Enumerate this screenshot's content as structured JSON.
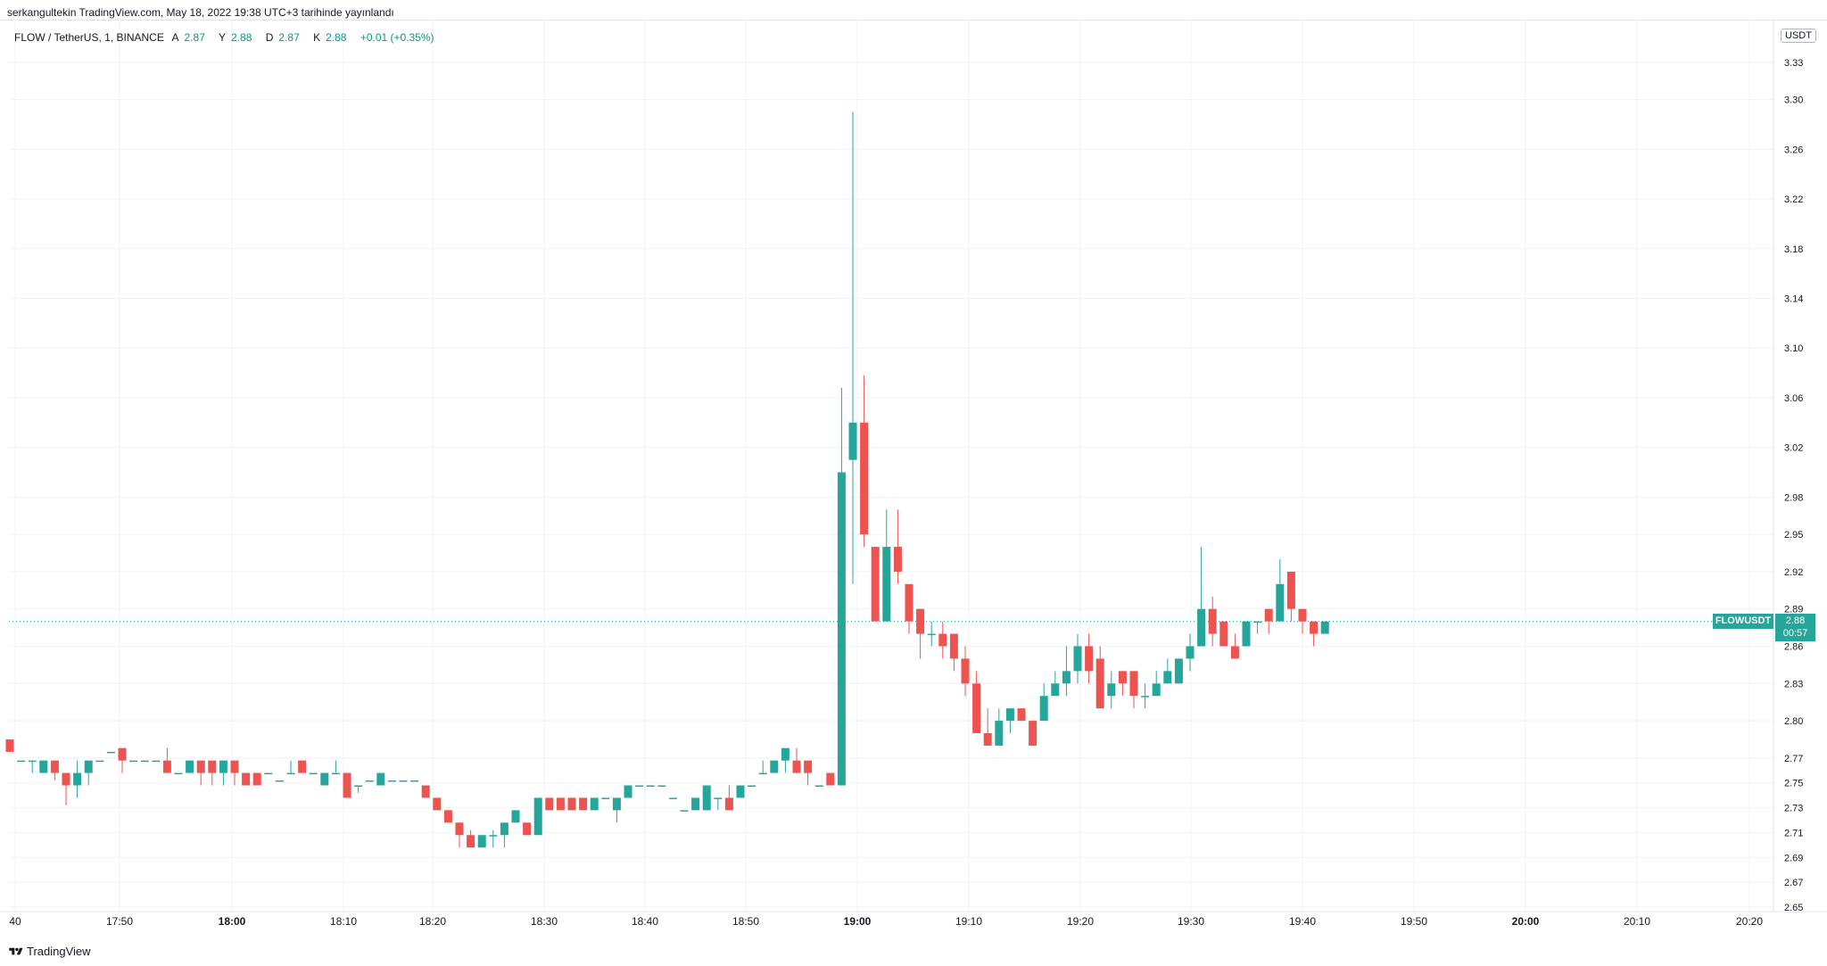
{
  "publish": {
    "text": "serkangultekin TradingView.com, May 18, 2022 19:38 UTC+3 tarihinde yayınlandı"
  },
  "legend": {
    "title": "FLOW / TetherUS, 1, BINANCE",
    "open_label": "A",
    "open": "2.87",
    "high_label": "Y",
    "high": "2.88",
    "low_label": "D",
    "low": "2.87",
    "close_label": "K",
    "close": "2.88",
    "change": "+0.01 (+0.35%)"
  },
  "price_axis": {
    "unit": "USDT",
    "ticks": [
      "3.33",
      "3.30",
      "3.26",
      "3.22",
      "3.18",
      "3.14",
      "3.10",
      "3.06",
      "3.02",
      "2.98",
      "2.95",
      "2.92",
      "2.89",
      "2.86",
      "2.83",
      "2.80",
      "2.77",
      "2.75",
      "2.73",
      "2.71",
      "2.69",
      "2.67",
      "2.65"
    ]
  },
  "last_price": {
    "symbol": "FLOWUSDT",
    "price": "2.88",
    "countdown": "00:57"
  },
  "time_axis": {
    "ticks": [
      {
        "label": "40",
        "bold": false
      },
      {
        "label": "17:50",
        "bold": false
      },
      {
        "label": "18:00",
        "bold": true
      },
      {
        "label": "18:10",
        "bold": false
      },
      {
        "label": "18:20",
        "bold": false
      },
      {
        "label": "18:30",
        "bold": false
      },
      {
        "label": "18:40",
        "bold": false
      },
      {
        "label": "18:50",
        "bold": false
      },
      {
        "label": "19:00",
        "bold": true
      },
      {
        "label": "19:10",
        "bold": false
      },
      {
        "label": "19:20",
        "bold": false
      },
      {
        "label": "19:30",
        "bold": false
      },
      {
        "label": "19:40",
        "bold": false
      },
      {
        "label": "19:50",
        "bold": false
      },
      {
        "label": "20:00",
        "bold": true
      },
      {
        "label": "20:10",
        "bold": false
      },
      {
        "label": "20:20",
        "bold": false
      }
    ]
  },
  "brand": {
    "logo_text": "TradingView"
  },
  "colors": {
    "up": "#26a69a",
    "down": "#ef5350",
    "grid": "#f0f3fa",
    "axis_text": "#131722"
  },
  "chart_data": {
    "type": "candlestick",
    "symbol": "FLOW / TetherUS",
    "interval": "1",
    "exchange": "BINANCE",
    "ylim": [
      2.65,
      3.35
    ],
    "x_axis": "time",
    "candles": [
      {
        "t": "17:40",
        "o": 2.785,
        "h": 2.785,
        "l": 2.775,
        "c": 2.775
      },
      {
        "t": "17:41",
        "o": 2.768,
        "h": 2.768,
        "l": 2.768,
        "c": 2.768
      },
      {
        "t": "17:42",
        "o": 2.768,
        "h": 2.768,
        "l": 2.758,
        "c": 2.768
      },
      {
        "t": "17:43",
        "o": 2.758,
        "h": 2.768,
        "l": 2.758,
        "c": 2.768
      },
      {
        "t": "17:44",
        "o": 2.768,
        "h": 2.768,
        "l": 2.752,
        "c": 2.758
      },
      {
        "t": "17:45",
        "o": 2.758,
        "h": 2.758,
        "l": 2.732,
        "c": 2.748
      },
      {
        "t": "17:46",
        "o": 2.748,
        "h": 2.768,
        "l": 2.738,
        "c": 2.758
      },
      {
        "t": "17:47",
        "o": 2.758,
        "h": 2.768,
        "l": 2.748,
        "c": 2.768
      },
      {
        "t": "17:48",
        "o": 2.768,
        "h": 2.768,
        "l": 2.768,
        "c": 2.768
      },
      {
        "t": "17:49",
        "o": 2.775,
        "h": 2.775,
        "l": 2.775,
        "c": 2.775
      },
      {
        "t": "17:50",
        "o": 2.778,
        "h": 2.778,
        "l": 2.758,
        "c": 2.768
      },
      {
        "t": "17:51",
        "o": 2.768,
        "h": 2.768,
        "l": 2.768,
        "c": 2.768
      },
      {
        "t": "17:52",
        "o": 2.768,
        "h": 2.768,
        "l": 2.768,
        "c": 2.768
      },
      {
        "t": "17:53",
        "o": 2.768,
        "h": 2.768,
        "l": 2.768,
        "c": 2.768
      },
      {
        "t": "17:54",
        "o": 2.768,
        "h": 2.778,
        "l": 2.758,
        "c": 2.758
      },
      {
        "t": "17:55",
        "o": 2.758,
        "h": 2.758,
        "l": 2.758,
        "c": 2.758
      },
      {
        "t": "17:56",
        "o": 2.758,
        "h": 2.768,
        "l": 2.758,
        "c": 2.768
      },
      {
        "t": "17:57",
        "o": 2.768,
        "h": 2.768,
        "l": 2.748,
        "c": 2.758
      },
      {
        "t": "17:58",
        "o": 2.768,
        "h": 2.768,
        "l": 2.748,
        "c": 2.758
      },
      {
        "t": "17:59",
        "o": 2.758,
        "h": 2.768,
        "l": 2.748,
        "c": 2.768
      },
      {
        "t": "18:00",
        "o": 2.768,
        "h": 2.768,
        "l": 2.748,
        "c": 2.758
      },
      {
        "t": "18:01",
        "o": 2.758,
        "h": 2.758,
        "l": 2.748,
        "c": 2.748
      },
      {
        "t": "18:02",
        "o": 2.758,
        "h": 2.758,
        "l": 2.748,
        "c": 2.748
      },
      {
        "t": "18:03",
        "o": 2.758,
        "h": 2.758,
        "l": 2.758,
        "c": 2.758
      },
      {
        "t": "18:04",
        "o": 2.752,
        "h": 2.752,
        "l": 2.752,
        "c": 2.752
      },
      {
        "t": "18:05",
        "o": 2.758,
        "h": 2.768,
        "l": 2.758,
        "c": 2.758
      },
      {
        "t": "18:06",
        "o": 2.768,
        "h": 2.768,
        "l": 2.758,
        "c": 2.758
      },
      {
        "t": "18:07",
        "o": 2.758,
        "h": 2.758,
        "l": 2.758,
        "c": 2.758
      },
      {
        "t": "18:08",
        "o": 2.748,
        "h": 2.758,
        "l": 2.748,
        "c": 2.758
      },
      {
        "t": "18:09",
        "o": 2.758,
        "h": 2.768,
        "l": 2.758,
        "c": 2.758
      },
      {
        "t": "18:10",
        "o": 2.758,
        "h": 2.758,
        "l": 2.738,
        "c": 2.738
      },
      {
        "t": "18:11",
        "o": 2.748,
        "h": 2.748,
        "l": 2.742,
        "c": 2.748
      },
      {
        "t": "18:12",
        "o": 2.752,
        "h": 2.752,
        "l": 2.752,
        "c": 2.752
      },
      {
        "t": "18:13",
        "o": 2.748,
        "h": 2.758,
        "l": 2.748,
        "c": 2.758
      },
      {
        "t": "18:14",
        "o": 2.752,
        "h": 2.752,
        "l": 2.752,
        "c": 2.752
      },
      {
        "t": "18:15",
        "o": 2.752,
        "h": 2.752,
        "l": 2.752,
        "c": 2.752
      },
      {
        "t": "18:16",
        "o": 2.752,
        "h": 2.752,
        "l": 2.752,
        "c": 2.752
      },
      {
        "t": "18:17",
        "o": 2.748,
        "h": 2.748,
        "l": 2.738,
        "c": 2.738
      },
      {
        "t": "18:18",
        "o": 2.738,
        "h": 2.738,
        "l": 2.728,
        "c": 2.728
      },
      {
        "t": "18:19",
        "o": 2.728,
        "h": 2.728,
        "l": 2.718,
        "c": 2.718
      },
      {
        "t": "18:20",
        "o": 2.718,
        "h": 2.718,
        "l": 2.698,
        "c": 2.708
      },
      {
        "t": "18:21",
        "o": 2.708,
        "h": 2.712,
        "l": 2.698,
        "c": 2.698
      },
      {
        "t": "18:22",
        "o": 2.698,
        "h": 2.708,
        "l": 2.698,
        "c": 2.708
      },
      {
        "t": "18:23",
        "o": 2.708,
        "h": 2.712,
        "l": 2.698,
        "c": 2.708
      },
      {
        "t": "18:24",
        "o": 2.708,
        "h": 2.718,
        "l": 2.698,
        "c": 2.718
      },
      {
        "t": "18:25",
        "o": 2.718,
        "h": 2.728,
        "l": 2.718,
        "c": 2.728
      },
      {
        "t": "18:26",
        "o": 2.718,
        "h": 2.718,
        "l": 2.708,
        "c": 2.708
      },
      {
        "t": "18:27",
        "o": 2.708,
        "h": 2.738,
        "l": 2.708,
        "c": 2.738
      },
      {
        "t": "18:28",
        "o": 2.738,
        "h": 2.738,
        "l": 2.728,
        "c": 2.728
      },
      {
        "t": "18:29",
        "o": 2.738,
        "h": 2.738,
        "l": 2.728,
        "c": 2.728
      },
      {
        "t": "18:30",
        "o": 2.738,
        "h": 2.738,
        "l": 2.728,
        "c": 2.728
      },
      {
        "t": "18:31",
        "o": 2.738,
        "h": 2.738,
        "l": 2.728,
        "c": 2.728
      },
      {
        "t": "18:32",
        "o": 2.728,
        "h": 2.738,
        "l": 2.728,
        "c": 2.738
      },
      {
        "t": "18:33",
        "o": 2.738,
        "h": 2.738,
        "l": 2.738,
        "c": 2.738
      },
      {
        "t": "18:34",
        "o": 2.728,
        "h": 2.738,
        "l": 2.718,
        "c": 2.738
      },
      {
        "t": "18:35",
        "o": 2.738,
        "h": 2.748,
        "l": 2.738,
        "c": 2.748
      },
      {
        "t": "18:36",
        "o": 2.748,
        "h": 2.748,
        "l": 2.748,
        "c": 2.748
      },
      {
        "t": "18:37",
        "o": 2.748,
        "h": 2.748,
        "l": 2.748,
        "c": 2.748
      },
      {
        "t": "18:38",
        "o": 2.748,
        "h": 2.748,
        "l": 2.748,
        "c": 2.748
      },
      {
        "t": "18:39",
        "o": 2.738,
        "h": 2.738,
        "l": 2.738,
        "c": 2.738
      },
      {
        "t": "18:40",
        "o": 2.728,
        "h": 2.728,
        "l": 2.728,
        "c": 2.728
      },
      {
        "t": "18:41",
        "o": 2.728,
        "h": 2.738,
        "l": 2.728,
        "c": 2.738
      },
      {
        "t": "18:42",
        "o": 2.728,
        "h": 2.748,
        "l": 2.728,
        "c": 2.748
      },
      {
        "t": "18:43",
        "o": 2.738,
        "h": 2.738,
        "l": 2.728,
        "c": 2.738
      },
      {
        "t": "18:44",
        "o": 2.738,
        "h": 2.748,
        "l": 2.728,
        "c": 2.728
      },
      {
        "t": "18:45",
        "o": 2.738,
        "h": 2.748,
        "l": 2.738,
        "c": 2.748
      },
      {
        "t": "18:46",
        "o": 2.748,
        "h": 2.748,
        "l": 2.748,
        "c": 2.748
      },
      {
        "t": "18:47",
        "o": 2.758,
        "h": 2.768,
        "l": 2.758,
        "c": 2.758
      },
      {
        "t": "18:48",
        "o": 2.758,
        "h": 2.768,
        "l": 2.758,
        "c": 2.768
      },
      {
        "t": "18:49",
        "o": 2.768,
        "h": 2.778,
        "l": 2.758,
        "c": 2.778
      },
      {
        "t": "18:50",
        "o": 2.768,
        "h": 2.778,
        "l": 2.758,
        "c": 2.758
      },
      {
        "t": "18:51",
        "o": 2.768,
        "h": 2.768,
        "l": 2.748,
        "c": 2.758
      },
      {
        "t": "18:52",
        "o": 2.748,
        "h": 2.748,
        "l": 2.748,
        "c": 2.748
      },
      {
        "t": "18:53",
        "o": 2.758,
        "h": 2.758,
        "l": 2.748,
        "c": 2.748
      },
      {
        "t": "18:54",
        "o": 2.748,
        "h": 3.068,
        "l": 2.748,
        "c": 3.0
      },
      {
        "t": "18:55",
        "o": 3.01,
        "h": 3.29,
        "l": 2.91,
        "c": 3.04
      },
      {
        "t": "18:56",
        "o": 3.04,
        "h": 3.078,
        "l": 2.94,
        "c": 2.95
      },
      {
        "t": "18:57",
        "o": 2.94,
        "h": 2.94,
        "l": 2.88,
        "c": 2.88
      },
      {
        "t": "18:58",
        "o": 2.88,
        "h": 2.97,
        "l": 2.88,
        "c": 2.94
      },
      {
        "t": "18:59",
        "o": 2.94,
        "h": 2.97,
        "l": 2.91,
        "c": 2.92
      },
      {
        "t": "19:00",
        "o": 2.91,
        "h": 2.91,
        "l": 2.87,
        "c": 2.88
      },
      {
        "t": "19:01",
        "o": 2.89,
        "h": 2.89,
        "l": 2.85,
        "c": 2.87
      },
      {
        "t": "19:02",
        "o": 2.87,
        "h": 2.88,
        "l": 2.86,
        "c": 2.87
      },
      {
        "t": "19:03",
        "o": 2.87,
        "h": 2.88,
        "l": 2.85,
        "c": 2.86
      },
      {
        "t": "19:04",
        "o": 2.87,
        "h": 2.87,
        "l": 2.84,
        "c": 2.85
      },
      {
        "t": "19:05",
        "o": 2.85,
        "h": 2.86,
        "l": 2.82,
        "c": 2.83
      },
      {
        "t": "19:06",
        "o": 2.83,
        "h": 2.84,
        "l": 2.79,
        "c": 2.79
      },
      {
        "t": "19:07",
        "o": 2.79,
        "h": 2.81,
        "l": 2.78,
        "c": 2.78
      },
      {
        "t": "19:08",
        "o": 2.78,
        "h": 2.81,
        "l": 2.78,
        "c": 2.8
      },
      {
        "t": "19:09",
        "o": 2.8,
        "h": 2.81,
        "l": 2.79,
        "c": 2.81
      },
      {
        "t": "19:10",
        "o": 2.81,
        "h": 2.81,
        "l": 2.8,
        "c": 2.8
      },
      {
        "t": "19:11",
        "o": 2.8,
        "h": 2.8,
        "l": 2.78,
        "c": 2.78
      },
      {
        "t": "19:12",
        "o": 2.8,
        "h": 2.83,
        "l": 2.8,
        "c": 2.82
      },
      {
        "t": "19:13",
        "o": 2.82,
        "h": 2.84,
        "l": 2.82,
        "c": 2.83
      },
      {
        "t": "19:14",
        "o": 2.83,
        "h": 2.86,
        "l": 2.82,
        "c": 2.84
      },
      {
        "t": "19:15",
        "o": 2.84,
        "h": 2.87,
        "l": 2.83,
        "c": 2.86
      },
      {
        "t": "19:16",
        "o": 2.86,
        "h": 2.87,
        "l": 2.83,
        "c": 2.84
      },
      {
        "t": "19:17",
        "o": 2.85,
        "h": 2.86,
        "l": 2.81,
        "c": 2.81
      },
      {
        "t": "19:18",
        "o": 2.82,
        "h": 2.84,
        "l": 2.81,
        "c": 2.83
      },
      {
        "t": "19:19",
        "o": 2.84,
        "h": 2.84,
        "l": 2.82,
        "c": 2.83
      },
      {
        "t": "19:20",
        "o": 2.84,
        "h": 2.84,
        "l": 2.81,
        "c": 2.82
      },
      {
        "t": "19:21",
        "o": 2.82,
        "h": 2.83,
        "l": 2.81,
        "c": 2.82
      },
      {
        "t": "19:22",
        "o": 2.82,
        "h": 2.84,
        "l": 2.82,
        "c": 2.83
      },
      {
        "t": "19:23",
        "o": 2.83,
        "h": 2.85,
        "l": 2.83,
        "c": 2.84
      },
      {
        "t": "19:24",
        "o": 2.83,
        "h": 2.85,
        "l": 2.83,
        "c": 2.85
      },
      {
        "t": "19:25",
        "o": 2.85,
        "h": 2.87,
        "l": 2.84,
        "c": 2.86
      },
      {
        "t": "19:26",
        "o": 2.86,
        "h": 2.94,
        "l": 2.86,
        "c": 2.89
      },
      {
        "t": "19:27",
        "o": 2.89,
        "h": 2.9,
        "l": 2.86,
        "c": 2.87
      },
      {
        "t": "19:28",
        "o": 2.88,
        "h": 2.88,
        "l": 2.86,
        "c": 2.86
      },
      {
        "t": "19:29",
        "o": 2.86,
        "h": 2.87,
        "l": 2.85,
        "c": 2.85
      },
      {
        "t": "19:30",
        "o": 2.86,
        "h": 2.88,
        "l": 2.86,
        "c": 2.88
      },
      {
        "t": "19:31",
        "o": 2.88,
        "h": 2.88,
        "l": 2.87,
        "c": 2.88
      },
      {
        "t": "19:32",
        "o": 2.89,
        "h": 2.89,
        "l": 2.87,
        "c": 2.88
      },
      {
        "t": "19:33",
        "o": 2.88,
        "h": 2.93,
        "l": 2.88,
        "c": 2.91
      },
      {
        "t": "19:34",
        "o": 2.92,
        "h": 2.92,
        "l": 2.88,
        "c": 2.89
      },
      {
        "t": "19:35",
        "o": 2.89,
        "h": 2.89,
        "l": 2.87,
        "c": 2.88
      },
      {
        "t": "19:36",
        "o": 2.88,
        "h": 2.88,
        "l": 2.86,
        "c": 2.87
      },
      {
        "t": "19:37",
        "o": 2.87,
        "h": 2.88,
        "l": 2.87,
        "c": 2.88
      }
    ]
  }
}
